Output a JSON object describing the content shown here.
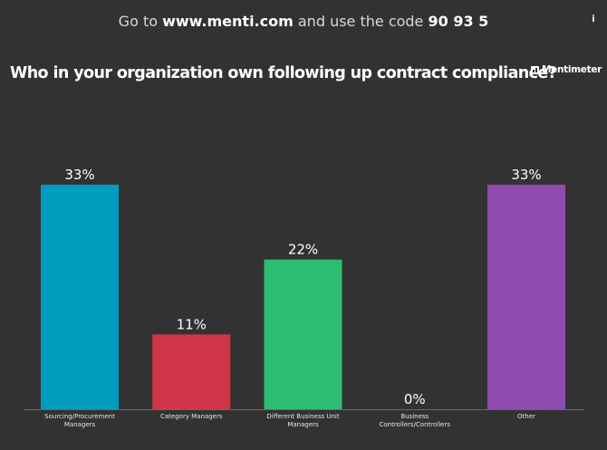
{
  "header": {
    "instruction_prefix": "Go to",
    "url": "www.menti.com",
    "instruction_middle": "and use the code",
    "code": "90 93 5",
    "info_icon": "info-icon"
  },
  "question": "Who in your organization own following up contract compliance?",
  "brand": {
    "name": "Mentimeter",
    "icon": "mentimeter-logo-icon"
  },
  "chart_data": {
    "type": "bar",
    "categories": [
      [
        "Sourcing/Procurement",
        "Managers"
      ],
      [
        "Category Managers"
      ],
      [
        "Different Business Unit",
        "Managers"
      ],
      [
        "Business",
        "Controllers/Controllers"
      ],
      [
        "Other"
      ]
    ],
    "values": [
      33,
      11,
      22,
      0,
      33
    ],
    "value_labels": [
      "33%",
      "11%",
      "22%",
      "0%",
      "33%"
    ],
    "colors": [
      "#009cbd",
      "#d0354a",
      "#2dbd72",
      "#e9a440",
      "#8f4bb0"
    ],
    "ylim": [
      0,
      33
    ],
    "grid": false,
    "legend": "none"
  }
}
